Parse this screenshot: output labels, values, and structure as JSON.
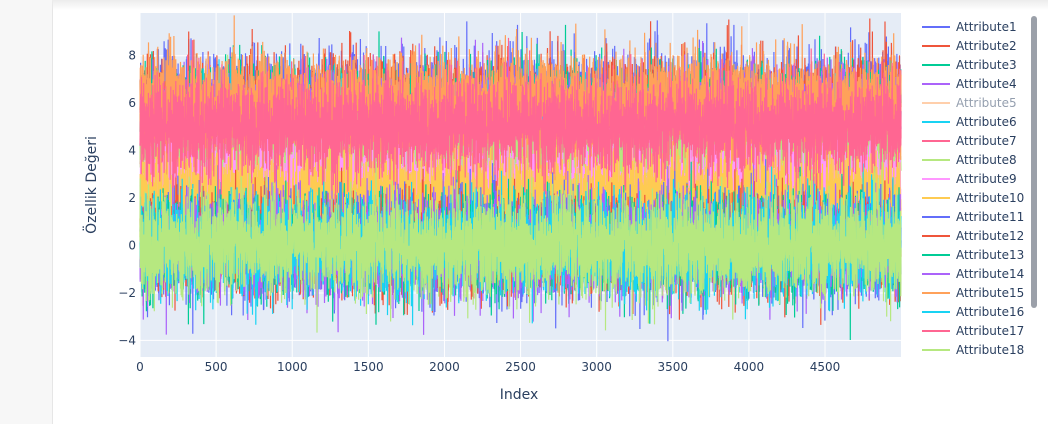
{
  "chart_data": {
    "type": "line",
    "xlabel": "Index",
    "ylabel": "Özellik Değeri",
    "xlim": [
      0,
      4999
    ],
    "ylim": [
      -4.7,
      9.8
    ],
    "x_ticks": [
      0,
      500,
      1000,
      1500,
      2000,
      2500,
      3000,
      3500,
      4000,
      4500
    ],
    "y_ticks": [
      -4,
      -2,
      0,
      2,
      4,
      6,
      8
    ],
    "y_tick_labels": [
      "−4",
      "−2",
      "0",
      "2",
      "4",
      "6",
      "8"
    ],
    "n_points_per_series": 5000,
    "legend_position": "right",
    "plot_background": "#e5ecf6",
    "grid": true,
    "series": [
      {
        "name": "Attribute1",
        "color": "#636efa",
        "center": 6.0,
        "spread": 1.0
      },
      {
        "name": "Attribute2",
        "color": "#ef553b",
        "center": 5.8,
        "spread": 1.0
      },
      {
        "name": "Attribute3",
        "color": "#00cc96",
        "center": 5.5,
        "spread": 1.0
      },
      {
        "name": "Attribute4",
        "color": "#ab63fa",
        "center": 5.3,
        "spread": 1.0
      },
      {
        "name": "Attribute5",
        "color": "#ffa15a",
        "center": 5.8,
        "spread": 1.0,
        "hidden": true
      },
      {
        "name": "Attribute6",
        "color": "#19d3f3",
        "center": 4.5,
        "spread": 1.0
      },
      {
        "name": "Attribute7",
        "color": "#ff6692",
        "center": 4.5,
        "spread": 1.0
      },
      {
        "name": "Attribute8",
        "color": "#b6e880",
        "center": 3.5,
        "spread": 1.0
      },
      {
        "name": "Attribute9",
        "color": "#ff97ff",
        "center": 2.5,
        "spread": 1.0
      },
      {
        "name": "Attribute10",
        "color": "#fecb52",
        "center": 2.0,
        "spread": 1.0
      },
      {
        "name": "Attribute11",
        "color": "#636efa",
        "center": 0.0,
        "spread": 1.0
      },
      {
        "name": "Attribute12",
        "color": "#ef553b",
        "center": 0.0,
        "spread": 1.0
      },
      {
        "name": "Attribute13",
        "color": "#00cc96",
        "center": 0.0,
        "spread": 1.0
      },
      {
        "name": "Attribute14",
        "color": "#ab63fa",
        "center": 0.0,
        "spread": 1.0
      },
      {
        "name": "Attribute15",
        "color": "#ffa15a",
        "center": 6.0,
        "spread": 1.0
      },
      {
        "name": "Attribute16",
        "color": "#19d3f3",
        "center": 0.0,
        "spread": 1.0
      },
      {
        "name": "Attribute17",
        "color": "#ff6692",
        "center": 5.0,
        "spread": 1.0
      },
      {
        "name": "Attribute18",
        "color": "#b6e880",
        "center": 0.0,
        "spread": 1.0
      }
    ]
  }
}
